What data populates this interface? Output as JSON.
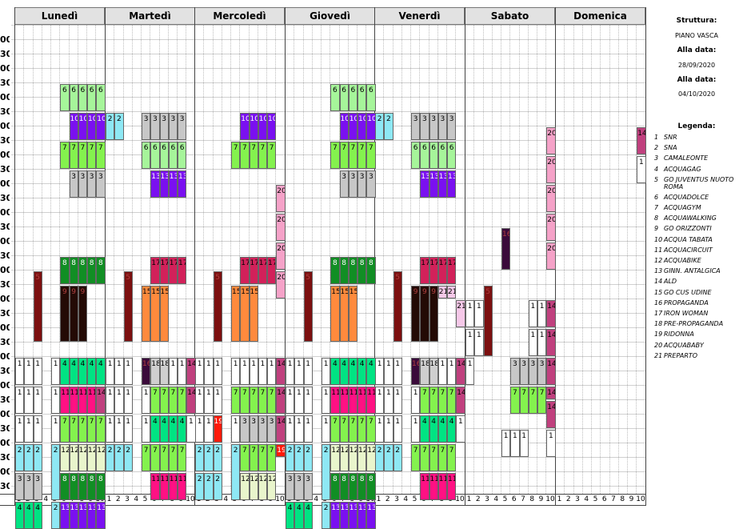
{
  "days": [
    "Lunedì",
    "Martedì",
    "Mercoledì",
    "Giovedì",
    "Venerdì",
    "Sabato",
    "Domenica"
  ],
  "time_labels": [
    "30",
    "00",
    "30",
    "00",
    "30",
    "00",
    "30",
    "00",
    "30",
    "00",
    "30",
    "00",
    "30",
    "00",
    "30",
    "00",
    "30",
    "00",
    "30",
    "00",
    "30",
    "00",
    "30",
    "00",
    "30",
    "00",
    "30",
    "00",
    "30",
    "00",
    "30",
    "00",
    "30",
    "00",
    "30"
  ],
  "lane_numbers": [
    "1",
    "2",
    "3",
    "4",
    "5",
    "6",
    "7",
    "8",
    "9",
    "10"
  ],
  "colors": {
    "1": "#ffffff",
    "2": "#8ee8f4",
    "3": "#c7c7c7",
    "4": "#00e383",
    "5": "#7c1010",
    "6": "#a6f59a",
    "7": "#84f24e",
    "8": "#118e24",
    "9": "#230a05",
    "10": "#7a10f0",
    "11": "#ff1183",
    "12": "#e9f5cc",
    "13": "#7a10f0",
    "14": "#c0407e",
    "15": "#ff8a3d",
    "16": "#3a0a3a",
    "17": "#d2215a",
    "18": "#cfcfcf",
    "19": "#ff1a0a",
    "20": "#f5a2c8",
    "21": "#f5c8e8"
  },
  "sidebar": {
    "struttura_label": "Struttura:",
    "struttura_value": "PIANO VASCA",
    "dal_label": "Alla data:",
    "dal_value": "28/09/2020",
    "al_label": "Alla data:",
    "al_value": "04/10/2020",
    "legend_title": "Legenda:"
  },
  "legend": [
    {
      "n": "1",
      "name": "SNR"
    },
    {
      "n": "2",
      "name": "SNA"
    },
    {
      "n": "3",
      "name": "CAMALEONTE"
    },
    {
      "n": "4",
      "name": "ACQUAGAG"
    },
    {
      "n": "5",
      "name": "GO JUVENTUS NUOTO ROMA"
    },
    {
      "n": "6",
      "name": "ACQUADOLCE"
    },
    {
      "n": "7",
      "name": "ACQUAGYM"
    },
    {
      "n": "8",
      "name": "ACQUAWALKING"
    },
    {
      "n": "9",
      "name": "GO ORIZZONTI"
    },
    {
      "n": "10",
      "name": "ACQUA TABATA"
    },
    {
      "n": "11",
      "name": "ACQUACIRCUIT"
    },
    {
      "n": "12",
      "name": "ACQUABIKE"
    },
    {
      "n": "13",
      "name": "GINN. ANTALGICA"
    },
    {
      "n": "14",
      "name": "ALD"
    },
    {
      "n": "15",
      "name": "GO CUS UDINE"
    },
    {
      "n": "16",
      "name": "PROPAGANDA"
    },
    {
      "n": "17",
      "name": "IRON WOMAN"
    },
    {
      "n": "18",
      "name": "PRE-PROPAGANDA"
    },
    {
      "n": "19",
      "name": "RIDONNA"
    },
    {
      "n": "20",
      "name": "ACQUABABY"
    },
    {
      "n": "21",
      "name": "PREPARTO"
    }
  ],
  "blocks": [
    {
      "d": 0,
      "l": 5,
      "w": 5,
      "r": 4,
      "h": 2,
      "t": "6"
    },
    {
      "d": 0,
      "l": 6,
      "w": 4,
      "r": 6,
      "h": 2,
      "t": "10"
    },
    {
      "d": 0,
      "l": 5,
      "w": 5,
      "r": 8,
      "h": 2,
      "t": "7"
    },
    {
      "d": 0,
      "l": 6,
      "w": 4,
      "r": 10,
      "h": 2,
      "t": "3"
    },
    {
      "d": 0,
      "l": 5,
      "w": 5,
      "r": 16,
      "h": 2,
      "t": "8"
    },
    {
      "d": 0,
      "l": 2,
      "w": 1,
      "r": 17,
      "h": 5,
      "t": "5"
    },
    {
      "d": 0,
      "l": 5,
      "w": 3,
      "r": 18,
      "h": 4,
      "t": "9"
    },
    {
      "d": 0,
      "l": 0,
      "w": 3,
      "r": 23,
      "h": 2,
      "t": "1"
    },
    {
      "d": 0,
      "l": 4,
      "w": 1,
      "r": 23,
      "h": 2,
      "t": "1"
    },
    {
      "d": 0,
      "l": 5,
      "w": 5,
      "r": 23,
      "h": 2,
      "t": "4"
    },
    {
      "d": 0,
      "l": 0,
      "w": 3,
      "r": 25,
      "h": 2,
      "t": "1"
    },
    {
      "d": 0,
      "l": 4,
      "w": 1,
      "r": 25,
      "h": 2,
      "t": "1"
    },
    {
      "d": 0,
      "l": 5,
      "w": 5,
      "r": 25,
      "h": 2,
      "t": "11"
    },
    {
      "d": 0,
      "l": 9,
      "w": 1,
      "r": 25,
      "h": 2,
      "t": "14"
    },
    {
      "d": 0,
      "l": 0,
      "w": 3,
      "r": 27,
      "h": 2,
      "t": "1"
    },
    {
      "d": 0,
      "l": 4,
      "w": 1,
      "r": 27,
      "h": 2,
      "t": "1"
    },
    {
      "d": 0,
      "l": 5,
      "w": 5,
      "r": 27,
      "h": 2,
      "t": "7"
    },
    {
      "d": 0,
      "l": 0,
      "w": 3,
      "r": 29,
      "h": 2,
      "t": "2"
    },
    {
      "d": 0,
      "l": 4,
      "w": 1,
      "r": 29,
      "h": 4,
      "t": "2"
    },
    {
      "d": 0,
      "l": 5,
      "w": 5,
      "r": 29,
      "h": 2,
      "t": "12"
    },
    {
      "d": 0,
      "l": 0,
      "w": 3,
      "r": 31,
      "h": 2,
      "t": "3"
    },
    {
      "d": 0,
      "l": 5,
      "w": 5,
      "r": 31,
      "h": 2,
      "t": "8"
    },
    {
      "d": 0,
      "l": 0,
      "w": 3,
      "r": 33,
      "h": 2,
      "t": "4"
    },
    {
      "d": 0,
      "l": 4,
      "w": 1,
      "r": 33,
      "h": 2,
      "t": "2"
    },
    {
      "d": 0,
      "l": 5,
      "w": 5,
      "r": 33,
      "h": 2,
      "t": "13"
    },
    {
      "d": 1,
      "l": 0,
      "w": 2,
      "r": 6,
      "h": 2,
      "t": "2"
    },
    {
      "d": 1,
      "l": 4,
      "w": 5,
      "r": 6,
      "h": 2,
      "t": "3"
    },
    {
      "d": 1,
      "l": 4,
      "w": 5,
      "r": 8,
      "h": 2,
      "t": "6"
    },
    {
      "d": 1,
      "l": 5,
      "w": 4,
      "r": 10,
      "h": 2,
      "t": "13"
    },
    {
      "d": 1,
      "l": 5,
      "w": 4,
      "r": 16,
      "h": 2,
      "t": "17"
    },
    {
      "d": 1,
      "l": 2,
      "w": 1,
      "r": 17,
      "h": 5,
      "t": "5"
    },
    {
      "d": 1,
      "l": 4,
      "w": 3,
      "r": 18,
      "h": 4,
      "t": "15"
    },
    {
      "d": 1,
      "l": 0,
      "w": 3,
      "r": 23,
      "h": 2,
      "t": "1"
    },
    {
      "d": 1,
      "l": 4,
      "w": 1,
      "r": 23,
      "h": 2,
      "t": "16"
    },
    {
      "d": 1,
      "l": 5,
      "w": 2,
      "r": 23,
      "h": 2,
      "t": "18"
    },
    {
      "d": 1,
      "l": 7,
      "w": 2,
      "r": 23,
      "h": 2,
      "t": "1"
    },
    {
      "d": 1,
      "l": 9,
      "w": 1,
      "r": 23,
      "h": 2,
      "t": "14"
    },
    {
      "d": 1,
      "l": 0,
      "w": 3,
      "r": 25,
      "h": 2,
      "t": "1"
    },
    {
      "d": 1,
      "l": 4,
      "w": 1,
      "r": 25,
      "h": 2,
      "t": "1"
    },
    {
      "d": 1,
      "l": 5,
      "w": 4,
      "r": 25,
      "h": 2,
      "t": "7"
    },
    {
      "d": 1,
      "l": 9,
      "w": 1,
      "r": 25,
      "h": 2,
      "t": "14"
    },
    {
      "d": 1,
      "l": 0,
      "w": 3,
      "r": 27,
      "h": 2,
      "t": "1"
    },
    {
      "d": 1,
      "l": 4,
      "w": 1,
      "r": 27,
      "h": 2,
      "t": "1"
    },
    {
      "d": 1,
      "l": 5,
      "w": 4,
      "r": 27,
      "h": 2,
      "t": "4"
    },
    {
      "d": 1,
      "l": 9,
      "w": 1,
      "r": 27,
      "h": 2,
      "t": "1"
    },
    {
      "d": 1,
      "l": 0,
      "w": 3,
      "r": 29,
      "h": 2,
      "t": "2"
    },
    {
      "d": 1,
      "l": 4,
      "w": 5,
      "r": 29,
      "h": 2,
      "t": "7"
    },
    {
      "d": 1,
      "l": 5,
      "w": 4,
      "r": 31,
      "h": 2,
      "t": "11"
    },
    {
      "d": 2,
      "l": 5,
      "w": 4,
      "r": 6,
      "h": 2,
      "t": "10"
    },
    {
      "d": 2,
      "l": 4,
      "w": 5,
      "r": 8,
      "h": 2,
      "t": "7"
    },
    {
      "d": 2,
      "l": 9,
      "w": 1,
      "r": 11,
      "h": 2,
      "t": "20"
    },
    {
      "d": 2,
      "l": 9,
      "w": 1,
      "r": 13,
      "h": 2,
      "t": "20"
    },
    {
      "d": 2,
      "l": 9,
      "w": 1,
      "r": 15,
      "h": 2,
      "t": "20"
    },
    {
      "d": 2,
      "l": 9,
      "w": 1,
      "r": 17,
      "h": 2,
      "t": "20"
    },
    {
      "d": 2,
      "l": 5,
      "w": 4,
      "r": 16,
      "h": 2,
      "t": "17"
    },
    {
      "d": 2,
      "l": 2,
      "w": 1,
      "r": 17,
      "h": 5,
      "t": "5"
    },
    {
      "d": 2,
      "l": 4,
      "w": 3,
      "r": 18,
      "h": 4,
      "t": "15"
    },
    {
      "d": 2,
      "l": 0,
      "w": 3,
      "r": 23,
      "h": 2,
      "t": "1"
    },
    {
      "d": 2,
      "l": 4,
      "w": 5,
      "r": 23,
      "h": 2,
      "t": "1"
    },
    {
      "d": 2,
      "l": 9,
      "w": 1,
      "r": 23,
      "h": 2,
      "t": "14"
    },
    {
      "d": 2,
      "l": 0,
      "w": 3,
      "r": 25,
      "h": 2,
      "t": "1"
    },
    {
      "d": 2,
      "l": 4,
      "w": 5,
      "r": 25,
      "h": 2,
      "t": "7"
    },
    {
      "d": 2,
      "l": 9,
      "w": 1,
      "r": 25,
      "h": 2,
      "t": "14"
    },
    {
      "d": 2,
      "l": 0,
      "w": 2,
      "r": 27,
      "h": 2,
      "t": "1"
    },
    {
      "d": 2,
      "l": 2,
      "w": 1,
      "r": 27,
      "h": 2,
      "t": "19"
    },
    {
      "d": 2,
      "l": 4,
      "w": 1,
      "r": 27,
      "h": 2,
      "t": "1"
    },
    {
      "d": 2,
      "l": 5,
      "w": 4,
      "r": 27,
      "h": 2,
      "t": "3"
    },
    {
      "d": 2,
      "l": 9,
      "w": 1,
      "r": 27,
      "h": 2,
      "t": "14"
    },
    {
      "d": 2,
      "l": 0,
      "w": 3,
      "r": 29,
      "h": 2,
      "t": "2"
    },
    {
      "d": 2,
      "l": 4,
      "w": 1,
      "r": 29,
      "h": 4,
      "t": "2"
    },
    {
      "d": 2,
      "l": 5,
      "w": 4,
      "r": 29,
      "h": 2,
      "t": "7"
    },
    {
      "d": 2,
      "l": 9,
      "w": 1,
      "r": 29,
      "h": 1,
      "t": "19"
    },
    {
      "d": 2,
      "l": 0,
      "w": 3,
      "r": 31,
      "h": 2,
      "t": "2"
    },
    {
      "d": 2,
      "l": 5,
      "w": 4,
      "r": 31,
      "h": 2,
      "t": "12"
    },
    {
      "d": 3,
      "l": 5,
      "w": 5,
      "r": 4,
      "h": 2,
      "t": "6"
    },
    {
      "d": 3,
      "l": 6,
      "w": 4,
      "r": 6,
      "h": 2,
      "t": "10"
    },
    {
      "d": 3,
      "l": 5,
      "w": 5,
      "r": 8,
      "h": 2,
      "t": "7"
    },
    {
      "d": 3,
      "l": 6,
      "w": 4,
      "r": 10,
      "h": 2,
      "t": "3"
    },
    {
      "d": 3,
      "l": 5,
      "w": 5,
      "r": 16,
      "h": 2,
      "t": "8"
    },
    {
      "d": 3,
      "l": 2,
      "w": 1,
      "r": 17,
      "h": 5,
      "t": "5"
    },
    {
      "d": 3,
      "l": 5,
      "w": 3,
      "r": 18,
      "h": 4,
      "t": "15"
    },
    {
      "d": 3,
      "l": 0,
      "w": 3,
      "r": 23,
      "h": 2,
      "t": "1"
    },
    {
      "d": 3,
      "l": 4,
      "w": 1,
      "r": 23,
      "h": 2,
      "t": "1"
    },
    {
      "d": 3,
      "l": 5,
      "w": 5,
      "r": 23,
      "h": 2,
      "t": "4"
    },
    {
      "d": 3,
      "l": 0,
      "w": 3,
      "r": 25,
      "h": 2,
      "t": "1"
    },
    {
      "d": 3,
      "l": 4,
      "w": 1,
      "r": 25,
      "h": 2,
      "t": "1"
    },
    {
      "d": 3,
      "l": 5,
      "w": 5,
      "r": 25,
      "h": 2,
      "t": "11"
    },
    {
      "d": 3,
      "l": 0,
      "w": 3,
      "r": 27,
      "h": 2,
      "t": "1"
    },
    {
      "d": 3,
      "l": 4,
      "w": 1,
      "r": 27,
      "h": 2,
      "t": "1"
    },
    {
      "d": 3,
      "l": 5,
      "w": 5,
      "r": 27,
      "h": 2,
      "t": "7"
    },
    {
      "d": 3,
      "l": 0,
      "w": 3,
      "r": 29,
      "h": 2,
      "t": "2"
    },
    {
      "d": 3,
      "l": 4,
      "w": 1,
      "r": 29,
      "h": 4,
      "t": "2"
    },
    {
      "d": 3,
      "l": 5,
      "w": 5,
      "r": 29,
      "h": 2,
      "t": "12"
    },
    {
      "d": 3,
      "l": 0,
      "w": 3,
      "r": 31,
      "h": 2,
      "t": "3"
    },
    {
      "d": 3,
      "l": 5,
      "w": 5,
      "r": 31,
      "h": 2,
      "t": "8"
    },
    {
      "d": 3,
      "l": 0,
      "w": 3,
      "r": 33,
      "h": 2,
      "t": "4"
    },
    {
      "d": 3,
      "l": 4,
      "w": 1,
      "r": 33,
      "h": 2,
      "t": "2"
    },
    {
      "d": 3,
      "l": 5,
      "w": 5,
      "r": 33,
      "h": 2,
      "t": "13"
    },
    {
      "d": 4,
      "l": 0,
      "w": 2,
      "r": 6,
      "h": 2,
      "t": "2"
    },
    {
      "d": 4,
      "l": 4,
      "w": 5,
      "r": 6,
      "h": 2,
      "t": "3"
    },
    {
      "d": 4,
      "l": 4,
      "w": 5,
      "r": 8,
      "h": 2,
      "t": "6"
    },
    {
      "d": 4,
      "l": 5,
      "w": 4,
      "r": 10,
      "h": 2,
      "t": "13"
    },
    {
      "d": 4,
      "l": 5,
      "w": 4,
      "r": 16,
      "h": 2,
      "t": "17"
    },
    {
      "d": 4,
      "l": 2,
      "w": 1,
      "r": 17,
      "h": 5,
      "t": "5"
    },
    {
      "d": 4,
      "l": 4,
      "w": 3,
      "r": 18,
      "h": 4,
      "t": "9"
    },
    {
      "d": 4,
      "l": 7,
      "w": 2,
      "r": 18,
      "h": 1,
      "t": "21"
    },
    {
      "d": 4,
      "l": 9,
      "w": 1,
      "r": 19,
      "h": 2,
      "t": "21"
    },
    {
      "d": 4,
      "l": 0,
      "w": 3,
      "r": 23,
      "h": 2,
      "t": "1"
    },
    {
      "d": 4,
      "l": 4,
      "w": 1,
      "r": 23,
      "h": 2,
      "t": "16"
    },
    {
      "d": 4,
      "l": 5,
      "w": 2,
      "r": 23,
      "h": 2,
      "t": "18"
    },
    {
      "d": 4,
      "l": 7,
      "w": 2,
      "r": 23,
      "h": 2,
      "t": "1"
    },
    {
      "d": 4,
      "l": 9,
      "w": 1,
      "r": 23,
      "h": 2,
      "t": "14"
    },
    {
      "d": 4,
      "l": 0,
      "w": 3,
      "r": 25,
      "h": 2,
      "t": "1"
    },
    {
      "d": 4,
      "l": 4,
      "w": 1,
      "r": 25,
      "h": 2,
      "t": "1"
    },
    {
      "d": 4,
      "l": 5,
      "w": 4,
      "r": 25,
      "h": 2,
      "t": "7"
    },
    {
      "d": 4,
      "l": 9,
      "w": 1,
      "r": 25,
      "h": 2,
      "t": "14"
    },
    {
      "d": 4,
      "l": 0,
      "w": 3,
      "r": 27,
      "h": 2,
      "t": "1"
    },
    {
      "d": 4,
      "l": 4,
      "w": 1,
      "r": 27,
      "h": 2,
      "t": "1"
    },
    {
      "d": 4,
      "l": 5,
      "w": 4,
      "r": 27,
      "h": 2,
      "t": "4"
    },
    {
      "d": 4,
      "l": 9,
      "w": 1,
      "r": 27,
      "h": 2,
      "t": "1"
    },
    {
      "d": 4,
      "l": 0,
      "w": 3,
      "r": 29,
      "h": 2,
      "t": "2"
    },
    {
      "d": 4,
      "l": 4,
      "w": 5,
      "r": 29,
      "h": 2,
      "t": "7"
    },
    {
      "d": 4,
      "l": 5,
      "w": 4,
      "r": 31,
      "h": 2,
      "t": "11"
    },
    {
      "d": 5,
      "l": 0,
      "w": 1,
      "r": 19,
      "h": 2,
      "t": "1"
    },
    {
      "d": 5,
      "l": 1,
      "w": 1,
      "r": 19,
      "h": 2,
      "t": "1"
    },
    {
      "d": 5,
      "l": 2,
      "w": 1,
      "r": 18,
      "h": 5,
      "t": "5"
    },
    {
      "d": 5,
      "l": 4,
      "w": 1,
      "r": 14,
      "h": 3,
      "t": "16"
    },
    {
      "d": 5,
      "l": 0,
      "w": 1,
      "r": 21,
      "h": 2,
      "t": "1"
    },
    {
      "d": 5,
      "l": 1,
      "w": 1,
      "r": 21,
      "h": 2,
      "t": "1"
    },
    {
      "d": 5,
      "l": 0,
      "w": 1,
      "r": 23,
      "h": 2,
      "t": "1"
    },
    {
      "d": 5,
      "l": 7,
      "w": 2,
      "r": 19,
      "h": 2,
      "t": "1"
    },
    {
      "d": 5,
      "l": 9,
      "w": 1,
      "r": 19,
      "h": 2,
      "t": "14"
    },
    {
      "d": 5,
      "l": 7,
      "w": 1,
      "r": 21,
      "h": 2,
      "t": "1"
    },
    {
      "d": 5,
      "l": 8,
      "w": 1,
      "r": 21,
      "h": 2,
      "t": "1"
    },
    {
      "d": 5,
      "l": 9,
      "w": 1,
      "r": 21,
      "h": 2,
      "t": "14"
    },
    {
      "d": 5,
      "l": 5,
      "w": 4,
      "r": 23,
      "h": 2,
      "t": "3"
    },
    {
      "d": 5,
      "l": 9,
      "w": 1,
      "r": 23,
      "h": 2,
      "t": "14"
    },
    {
      "d": 5,
      "l": 5,
      "w": 4,
      "r": 25,
      "h": 2,
      "t": "7"
    },
    {
      "d": 5,
      "l": 9,
      "w": 1,
      "r": 25,
      "h": 1,
      "t": "14"
    },
    {
      "d": 5,
      "l": 9,
      "w": 1,
      "r": 26,
      "h": 2,
      "t": "14"
    },
    {
      "d": 5,
      "l": 4,
      "w": 3,
      "r": 28,
      "h": 2,
      "t": "1"
    },
    {
      "d": 5,
      "l": 9,
      "w": 1,
      "r": 28,
      "h": 2,
      "t": "1"
    },
    {
      "d": 5,
      "l": 9,
      "w": 1,
      "r": 7,
      "h": 2,
      "t": "20"
    },
    {
      "d": 5,
      "l": 9,
      "w": 1,
      "r": 9,
      "h": 2,
      "t": "20"
    },
    {
      "d": 5,
      "l": 9,
      "w": 1,
      "r": 11,
      "h": 2,
      "t": "20"
    },
    {
      "d": 5,
      "l": 9,
      "w": 1,
      "r": 13,
      "h": 2,
      "t": "20"
    },
    {
      "d": 5,
      "l": 9,
      "w": 1,
      "r": 15,
      "h": 2,
      "t": "20"
    },
    {
      "d": 6,
      "l": 9,
      "w": 1,
      "r": 7,
      "h": 2,
      "t": "14"
    },
    {
      "d": 6,
      "l": 9,
      "w": 1,
      "r": 9,
      "h": 2,
      "t": "1"
    }
  ]
}
